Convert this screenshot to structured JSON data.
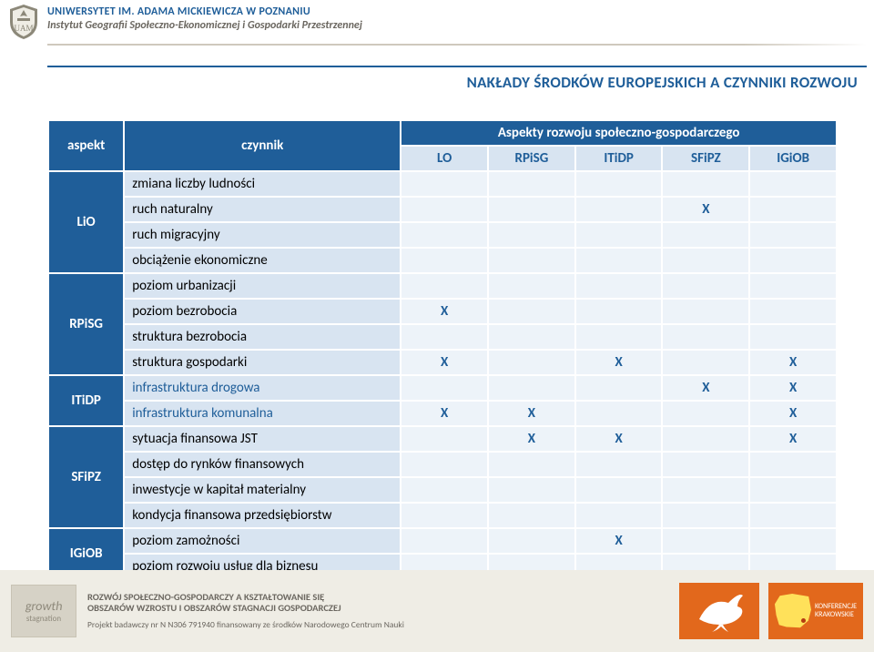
{
  "header": {
    "university": "UNIWERSYTET IM. ADAMA MICKIEWICZA W POZNANIU",
    "institute": "Instytut Geografii Społeczno-Ekonomicznej i Gospodarki Przestrzennej",
    "subtitle": "NAKŁADY ŚRODKÓW EUROPEJSKICH A CZYNNIKI ROZWOJU"
  },
  "table": {
    "col_aspekt": "aspekt",
    "col_czynnik": "czynnik",
    "group_header": "Aspekty rozwoju społeczno-gospodarczego",
    "sub_headers": [
      "LO",
      "RPiSG",
      "ITiDP",
      "SFiPZ",
      "IGiOB"
    ],
    "mark": "X",
    "colors": {
      "hdr_bg": "#1f5e99",
      "hdr_fg": "#ffffff",
      "sub_bg": "#d8e4f1",
      "sub_fg": "#1f5e99",
      "val_bg": "#edf3f9",
      "accent": "#1f5e99"
    },
    "groups": [
      {
        "label": "LiO",
        "rows": [
          {
            "czynnik": "zmiana liczby ludności",
            "accent": false,
            "marks": [
              "",
              "",
              "",
              "",
              ""
            ]
          },
          {
            "czynnik": "ruch naturalny",
            "accent": false,
            "marks": [
              "",
              "",
              "",
              "X",
              ""
            ]
          },
          {
            "czynnik": "ruch migracyjny",
            "accent": false,
            "marks": [
              "",
              "",
              "",
              "",
              ""
            ]
          },
          {
            "czynnik": "obciążenie ekonomiczne",
            "accent": false,
            "marks": [
              "",
              "",
              "",
              "",
              ""
            ]
          }
        ]
      },
      {
        "label": "RPiSG",
        "rows": [
          {
            "czynnik": "poziom urbanizacji",
            "accent": false,
            "marks": [
              "",
              "",
              "",
              "",
              ""
            ]
          },
          {
            "czynnik": "poziom bezrobocia",
            "accent": false,
            "marks": [
              "X",
              "",
              "",
              "",
              ""
            ]
          },
          {
            "czynnik": "struktura bezrobocia",
            "accent": false,
            "marks": [
              "",
              "",
              "",
              "",
              ""
            ]
          },
          {
            "czynnik": "struktura gospodarki",
            "accent": false,
            "marks": [
              "X",
              "",
              "X",
              "",
              "X"
            ]
          }
        ]
      },
      {
        "label": "ITiDP",
        "rows": [
          {
            "czynnik": "infrastruktura drogowa",
            "accent": true,
            "marks": [
              "",
              "",
              "",
              "X",
              "X"
            ]
          },
          {
            "czynnik": "infrastruktura komunalna",
            "accent": true,
            "marks": [
              "X",
              "X",
              "",
              "",
              "X"
            ]
          }
        ]
      },
      {
        "label": "SFiPZ",
        "rows": [
          {
            "czynnik": "sytuacja finansowa JST",
            "accent": false,
            "marks": [
              "",
              "X",
              "X",
              "",
              "X"
            ]
          },
          {
            "czynnik": "dostęp do rynków finansowych",
            "accent": false,
            "marks": [
              "",
              "",
              "",
              "",
              ""
            ]
          },
          {
            "czynnik": "inwestycje w kapitał materialny",
            "accent": false,
            "marks": [
              "",
              "",
              "",
              "",
              ""
            ]
          },
          {
            "czynnik": "kondycja finansowa przedsiębiorstw",
            "accent": false,
            "marks": [
              "",
              "",
              "",
              "",
              ""
            ]
          }
        ]
      },
      {
        "label": "IGiOB",
        "rows": [
          {
            "czynnik": "poziom zamożności",
            "accent": false,
            "marks": [
              "",
              "",
              "X",
              "",
              ""
            ]
          },
          {
            "czynnik": "poziom rozwoju usług dla biznesu",
            "accent": false,
            "marks": [
              "",
              "",
              "",
              "",
              ""
            ]
          }
        ]
      }
    ]
  },
  "footer": {
    "tile_word1": "growth",
    "tile_word2": "stagnation",
    "title_line1": "ROZWÓJ SPOŁECZNO-GOSPODARCZY A KSZTAŁTOWANIE SIĘ",
    "title_line2": "OBSZARÓW WZROSTU I OBSZARÓW STAGNACJI GOSPODARCZEJ",
    "sub": "Projekt badawczy nr N N306 791940 finansowany ze środków Narodowego Centrum Nauki",
    "kk_line1": "KONFERENCJE",
    "kk_line2": "KRAKOWSKIE"
  }
}
